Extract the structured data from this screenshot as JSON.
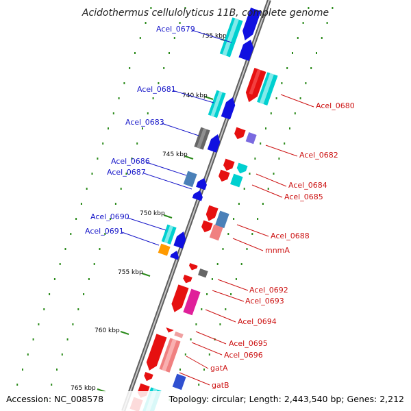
{
  "title": "Acidothermus cellulolyticus 11B, complete genome",
  "footer": {
    "accession": "Accession: NC_008578",
    "summary": "Topology: circular; Length: 2,443,540 bp; Genes: 2,212"
  },
  "ticks": [
    {
      "label": "735 kbp"
    },
    {
      "label": "740 kbp"
    },
    {
      "label": "745 kbp"
    },
    {
      "label": "750 kbp"
    },
    {
      "label": "755 kbp"
    },
    {
      "label": "760 kbp"
    },
    {
      "label": "765 kbp"
    }
  ],
  "left_labels": [
    "Acel_0679",
    "Acel_0681",
    "Acel_0683",
    "Acel_0686",
    "Acel_0687",
    "Acel_0690",
    "Acel_0691"
  ],
  "right_labels": [
    "Acel_0680",
    "Acel_0682",
    "Acel_0684",
    "Acel_0685",
    "Acel_0688",
    "mnmA",
    "Acel_0692",
    "Acel_0693",
    "Acel_0694",
    "Acel_0695",
    "Acel_0696",
    "gatA",
    "gatB"
  ],
  "colors": {
    "backbone": "#7a7a7a",
    "reverse_strand": "#e61010",
    "forward_strand": "#1010e0",
    "cyan_class": "#00d0d0",
    "pink_class": "#f08080",
    "magenta_class": "#e0209a",
    "grey_class": "#666666",
    "steelblue_class": "#4a80b8",
    "orange_class": "#ff9a00",
    "purple_class": "#7a6ae0",
    "label_left": "#1414c8",
    "label_right": "#cc1010",
    "tick": "#2a8a1a"
  }
}
